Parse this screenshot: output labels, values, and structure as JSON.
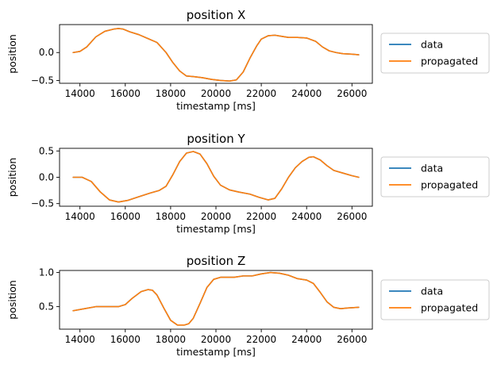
{
  "chart_data": [
    {
      "type": "line",
      "title": "position X",
      "xlabel": "timestamp [ms]",
      "ylabel": "position",
      "xlim": [
        13100,
        26900
      ],
      "ylim": [
        -0.55,
        0.5
      ],
      "xticks": [
        14000,
        16000,
        18000,
        20000,
        22000,
        24000,
        26000
      ],
      "yticks": [
        -0.5,
        0.0
      ],
      "ytick_labels": [
        "−0.5",
        "0.0"
      ],
      "legend": "right-outside",
      "series": [
        {
          "name": "data",
          "color": "#1f77b4",
          "x": [
            13700,
            14000,
            14300,
            14700,
            15100,
            15500,
            15700,
            15900,
            16200,
            16600,
            17000,
            17400,
            17800,
            18100,
            18400,
            18700,
            19000,
            19400,
            19800,
            20200,
            20600,
            20900,
            21200,
            21500,
            21800,
            22000,
            22300,
            22600,
            22900,
            23200,
            23600,
            24000,
            24400,
            24700,
            25000,
            25300,
            25600,
            26000,
            26300
          ],
          "y": [
            0.0,
            0.02,
            0.1,
            0.28,
            0.38,
            0.42,
            0.43,
            0.42,
            0.37,
            0.32,
            0.25,
            0.18,
            0.0,
            -0.18,
            -0.33,
            -0.42,
            -0.43,
            -0.45,
            -0.48,
            -0.5,
            -0.51,
            -0.49,
            -0.35,
            -0.1,
            0.12,
            0.24,
            0.3,
            0.31,
            0.29,
            0.27,
            0.27,
            0.26,
            0.2,
            0.1,
            0.03,
            0.0,
            -0.02,
            -0.03,
            -0.04
          ]
        },
        {
          "name": "propagated",
          "color": "#ff7f0e",
          "x": [
            13700,
            14000,
            14300,
            14700,
            15100,
            15500,
            15700,
            15900,
            16200,
            16600,
            17000,
            17400,
            17800,
            18100,
            18400,
            18700,
            19000,
            19400,
            19800,
            20200,
            20600,
            20900,
            21200,
            21500,
            21800,
            22000,
            22300,
            22600,
            22900,
            23200,
            23600,
            24000,
            24400,
            24700,
            25000,
            25300,
            25600,
            26000,
            26300
          ],
          "y": [
            0.0,
            0.02,
            0.1,
            0.28,
            0.38,
            0.42,
            0.43,
            0.42,
            0.37,
            0.32,
            0.25,
            0.18,
            0.0,
            -0.18,
            -0.33,
            -0.42,
            -0.43,
            -0.45,
            -0.48,
            -0.5,
            -0.51,
            -0.49,
            -0.35,
            -0.1,
            0.12,
            0.24,
            0.3,
            0.31,
            0.29,
            0.27,
            0.27,
            0.26,
            0.2,
            0.1,
            0.03,
            0.0,
            -0.02,
            -0.03,
            -0.04
          ]
        }
      ]
    },
    {
      "type": "line",
      "title": "position Y",
      "xlabel": "timestamp [ms]",
      "ylabel": "position",
      "xlim": [
        13100,
        26900
      ],
      "ylim": [
        -0.55,
        0.55
      ],
      "xticks": [
        14000,
        16000,
        18000,
        20000,
        22000,
        24000,
        26000
      ],
      "yticks": [
        -0.5,
        0.0,
        0.5
      ],
      "ytick_labels": [
        "−0.5",
        "0.0",
        "0.5"
      ],
      "legend": "right-outside",
      "series": [
        {
          "name": "data",
          "color": "#1f77b4",
          "x": [
            13700,
            14100,
            14500,
            14900,
            15300,
            15700,
            16100,
            16600,
            17100,
            17500,
            17800,
            18100,
            18400,
            18700,
            19000,
            19300,
            19600,
            19900,
            20200,
            20600,
            21000,
            21500,
            21900,
            22300,
            22600,
            22900,
            23200,
            23500,
            23800,
            24100,
            24300,
            24600,
            24900,
            25200,
            25600,
            26000,
            26300
          ],
          "y": [
            0.0,
            0.0,
            -0.08,
            -0.28,
            -0.43,
            -0.47,
            -0.44,
            -0.37,
            -0.3,
            -0.25,
            -0.17,
            0.05,
            0.3,
            0.46,
            0.49,
            0.44,
            0.26,
            0.02,
            -0.15,
            -0.24,
            -0.28,
            -0.32,
            -0.38,
            -0.43,
            -0.4,
            -0.22,
            0.0,
            0.18,
            0.3,
            0.38,
            0.39,
            0.33,
            0.22,
            0.13,
            0.08,
            0.03,
            0.0
          ]
        },
        {
          "name": "propagated",
          "color": "#ff7f0e",
          "x": [
            13700,
            14100,
            14500,
            14900,
            15300,
            15700,
            16100,
            16600,
            17100,
            17500,
            17800,
            18100,
            18400,
            18700,
            19000,
            19300,
            19600,
            19900,
            20200,
            20600,
            21000,
            21500,
            21900,
            22300,
            22600,
            22900,
            23200,
            23500,
            23800,
            24100,
            24300,
            24600,
            24900,
            25200,
            25600,
            26000,
            26300
          ],
          "y": [
            0.0,
            0.0,
            -0.08,
            -0.28,
            -0.43,
            -0.47,
            -0.44,
            -0.37,
            -0.3,
            -0.25,
            -0.17,
            0.05,
            0.3,
            0.46,
            0.49,
            0.44,
            0.26,
            0.02,
            -0.15,
            -0.24,
            -0.28,
            -0.32,
            -0.38,
            -0.43,
            -0.4,
            -0.22,
            0.0,
            0.18,
            0.3,
            0.38,
            0.39,
            0.33,
            0.22,
            0.13,
            0.08,
            0.03,
            0.0
          ]
        }
      ]
    },
    {
      "type": "line",
      "title": "position Z",
      "xlabel": "timestamp [ms]",
      "ylabel": "position",
      "xlim": [
        13100,
        26900
      ],
      "ylim": [
        0.17,
        1.03
      ],
      "xticks": [
        14000,
        16000,
        18000,
        20000,
        22000,
        24000,
        26000
      ],
      "yticks": [
        0.5,
        1.0
      ],
      "ytick_labels": [
        "0.5",
        "1.0"
      ],
      "legend": "right-outside",
      "series": [
        {
          "name": "data",
          "color": "#1f77b4",
          "x": [
            13700,
            14200,
            14700,
            15200,
            15700,
            16000,
            16300,
            16700,
            17000,
            17200,
            17400,
            17700,
            18000,
            18300,
            18600,
            18800,
            19000,
            19300,
            19600,
            19900,
            20200,
            20500,
            20800,
            21200,
            21600,
            22000,
            22400,
            22800,
            23200,
            23600,
            24000,
            24300,
            24600,
            24900,
            25200,
            25500,
            25800,
            26300
          ],
          "y": [
            0.44,
            0.47,
            0.5,
            0.5,
            0.5,
            0.53,
            0.62,
            0.72,
            0.75,
            0.74,
            0.67,
            0.48,
            0.3,
            0.23,
            0.23,
            0.25,
            0.33,
            0.55,
            0.78,
            0.9,
            0.93,
            0.93,
            0.93,
            0.95,
            0.95,
            0.98,
            1.0,
            0.99,
            0.96,
            0.91,
            0.89,
            0.84,
            0.71,
            0.57,
            0.49,
            0.47,
            0.48,
            0.49
          ]
        },
        {
          "name": "propagated",
          "color": "#ff7f0e",
          "x": [
            13700,
            14200,
            14700,
            15200,
            15700,
            16000,
            16300,
            16700,
            17000,
            17200,
            17400,
            17700,
            18000,
            18300,
            18600,
            18800,
            19000,
            19300,
            19600,
            19900,
            20200,
            20500,
            20800,
            21200,
            21600,
            22000,
            22400,
            22800,
            23200,
            23600,
            24000,
            24300,
            24600,
            24900,
            25200,
            25500,
            25800,
            26300
          ],
          "y": [
            0.44,
            0.47,
            0.5,
            0.5,
            0.5,
            0.53,
            0.62,
            0.72,
            0.75,
            0.74,
            0.67,
            0.48,
            0.3,
            0.23,
            0.23,
            0.25,
            0.33,
            0.55,
            0.78,
            0.9,
            0.93,
            0.93,
            0.93,
            0.95,
            0.95,
            0.98,
            1.0,
            0.99,
            0.96,
            0.91,
            0.89,
            0.84,
            0.71,
            0.57,
            0.49,
            0.47,
            0.48,
            0.49
          ]
        }
      ]
    }
  ]
}
